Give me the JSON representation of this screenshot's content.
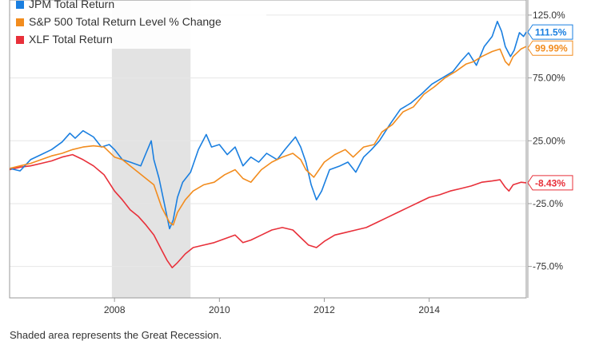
{
  "chart_data": {
    "type": "line",
    "title": "",
    "xlabel": "",
    "ylabel": "",
    "x_domain": [
      2006.0,
      2015.85
    ],
    "ylim": [
      -100,
      137
    ],
    "y_ticks": [
      {
        "value": 125,
        "label": "125.0%"
      },
      {
        "value": 75,
        "label": "75.00%"
      },
      {
        "value": 25,
        "label": "25.00%"
      },
      {
        "value": -25,
        "label": "-25.0%"
      },
      {
        "value": -75,
        "label": "-75.0%"
      }
    ],
    "x_ticks": [
      {
        "value": 2008,
        "label": "2008"
      },
      {
        "value": 2010,
        "label": "2010"
      },
      {
        "value": 2012,
        "label": "2012"
      },
      {
        "value": 2014,
        "label": "2014"
      }
    ],
    "shaded_region": {
      "x_start": 2007.95,
      "x_end": 2009.45
    },
    "grid": true,
    "legend_position": "top-left",
    "series": [
      {
        "name": "JPM Total Return",
        "color": "#1a7fe0",
        "end_label": "111.5%",
        "end_value": 111.5,
        "points": [
          [
            2006.0,
            3
          ],
          [
            2006.2,
            1
          ],
          [
            2006.4,
            10
          ],
          [
            2006.6,
            14
          ],
          [
            2006.8,
            18
          ],
          [
            2007.0,
            24
          ],
          [
            2007.15,
            31
          ],
          [
            2007.25,
            27
          ],
          [
            2007.4,
            33
          ],
          [
            2007.6,
            28
          ],
          [
            2007.75,
            20
          ],
          [
            2007.9,
            22
          ],
          [
            2008.0,
            18
          ],
          [
            2008.15,
            10
          ],
          [
            2008.3,
            8
          ],
          [
            2008.5,
            5
          ],
          [
            2008.6,
            15
          ],
          [
            2008.7,
            25
          ],
          [
            2008.75,
            10
          ],
          [
            2008.85,
            -5
          ],
          [
            2008.95,
            -25
          ],
          [
            2009.05,
            -45
          ],
          [
            2009.12,
            -38
          ],
          [
            2009.2,
            -20
          ],
          [
            2009.3,
            -8
          ],
          [
            2009.45,
            0
          ],
          [
            2009.6,
            18
          ],
          [
            2009.75,
            30
          ],
          [
            2009.85,
            20
          ],
          [
            2010.0,
            22
          ],
          [
            2010.15,
            14
          ],
          [
            2010.3,
            20
          ],
          [
            2010.45,
            5
          ],
          [
            2010.6,
            12
          ],
          [
            2010.75,
            8
          ],
          [
            2010.9,
            15
          ],
          [
            2011.1,
            10
          ],
          [
            2011.25,
            18
          ],
          [
            2011.45,
            28
          ],
          [
            2011.55,
            20
          ],
          [
            2011.65,
            8
          ],
          [
            2011.75,
            -10
          ],
          [
            2011.85,
            -22
          ],
          [
            2011.95,
            -15
          ],
          [
            2012.1,
            2
          ],
          [
            2012.3,
            5
          ],
          [
            2012.45,
            8
          ],
          [
            2012.6,
            0
          ],
          [
            2012.75,
            12
          ],
          [
            2012.9,
            18
          ],
          [
            2013.05,
            25
          ],
          [
            2013.25,
            38
          ],
          [
            2013.45,
            50
          ],
          [
            2013.65,
            55
          ],
          [
            2013.85,
            62
          ],
          [
            2014.05,
            70
          ],
          [
            2014.25,
            75
          ],
          [
            2014.45,
            80
          ],
          [
            2014.6,
            88
          ],
          [
            2014.75,
            95
          ],
          [
            2014.9,
            85
          ],
          [
            2015.05,
            100
          ],
          [
            2015.2,
            108
          ],
          [
            2015.3,
            120
          ],
          [
            2015.38,
            112
          ],
          [
            2015.45,
            100
          ],
          [
            2015.55,
            92
          ],
          [
            2015.62,
            97
          ],
          [
            2015.72,
            111
          ],
          [
            2015.8,
            108
          ],
          [
            2015.85,
            111.5
          ]
        ]
      },
      {
        "name": "S&P 500 Total Return Level % Change",
        "color": "#f28c1e",
        "end_label": "99.99%",
        "end_value": 99.99,
        "points": [
          [
            2006.0,
            3
          ],
          [
            2006.2,
            5
          ],
          [
            2006.4,
            7
          ],
          [
            2006.6,
            10
          ],
          [
            2006.8,
            13
          ],
          [
            2007.0,
            15
          ],
          [
            2007.2,
            18
          ],
          [
            2007.4,
            20
          ],
          [
            2007.6,
            21
          ],
          [
            2007.8,
            20
          ],
          [
            2008.0,
            12
          ],
          [
            2008.15,
            10
          ],
          [
            2008.3,
            5
          ],
          [
            2008.45,
            0
          ],
          [
            2008.6,
            -5
          ],
          [
            2008.75,
            -10
          ],
          [
            2008.9,
            -28
          ],
          [
            2009.05,
            -40
          ],
          [
            2009.12,
            -42
          ],
          [
            2009.2,
            -32
          ],
          [
            2009.35,
            -22
          ],
          [
            2009.5,
            -15
          ],
          [
            2009.7,
            -10
          ],
          [
            2009.9,
            -8
          ],
          [
            2010.1,
            -2
          ],
          [
            2010.3,
            2
          ],
          [
            2010.45,
            -5
          ],
          [
            2010.6,
            -8
          ],
          [
            2010.8,
            2
          ],
          [
            2011.0,
            8
          ],
          [
            2011.2,
            12
          ],
          [
            2011.4,
            15
          ],
          [
            2011.55,
            10
          ],
          [
            2011.65,
            2
          ],
          [
            2011.8,
            -4
          ],
          [
            2012.0,
            8
          ],
          [
            2012.2,
            14
          ],
          [
            2012.4,
            18
          ],
          [
            2012.55,
            12
          ],
          [
            2012.75,
            20
          ],
          [
            2012.95,
            22
          ],
          [
            2013.1,
            32
          ],
          [
            2013.3,
            38
          ],
          [
            2013.5,
            48
          ],
          [
            2013.7,
            52
          ],
          [
            2013.9,
            62
          ],
          [
            2014.1,
            68
          ],
          [
            2014.3,
            75
          ],
          [
            2014.5,
            80
          ],
          [
            2014.7,
            86
          ],
          [
            2014.85,
            88
          ],
          [
            2015.0,
            92
          ],
          [
            2015.2,
            96
          ],
          [
            2015.35,
            98
          ],
          [
            2015.45,
            88
          ],
          [
            2015.52,
            85
          ],
          [
            2015.6,
            92
          ],
          [
            2015.75,
            98
          ],
          [
            2015.85,
            99.99
          ]
        ]
      },
      {
        "name": "XLF Total Return",
        "color": "#e8303a",
        "end_label": "-8.43%",
        "end_value": -8.43,
        "points": [
          [
            2006.0,
            2
          ],
          [
            2006.2,
            4
          ],
          [
            2006.4,
            5
          ],
          [
            2006.6,
            7
          ],
          [
            2006.8,
            9
          ],
          [
            2007.0,
            12
          ],
          [
            2007.2,
            14
          ],
          [
            2007.4,
            10
          ],
          [
            2007.6,
            5
          ],
          [
            2007.8,
            -2
          ],
          [
            2008.0,
            -15
          ],
          [
            2008.15,
            -22
          ],
          [
            2008.3,
            -30
          ],
          [
            2008.45,
            -35
          ],
          [
            2008.6,
            -42
          ],
          [
            2008.75,
            -50
          ],
          [
            2008.9,
            -62
          ],
          [
            2009.0,
            -70
          ],
          [
            2009.1,
            -76
          ],
          [
            2009.2,
            -72
          ],
          [
            2009.35,
            -65
          ],
          [
            2009.5,
            -60
          ],
          [
            2009.7,
            -58
          ],
          [
            2009.9,
            -56
          ],
          [
            2010.1,
            -53
          ],
          [
            2010.3,
            -50
          ],
          [
            2010.45,
            -56
          ],
          [
            2010.6,
            -54
          ],
          [
            2010.8,
            -50
          ],
          [
            2011.0,
            -46
          ],
          [
            2011.2,
            -44
          ],
          [
            2011.4,
            -46
          ],
          [
            2011.55,
            -52
          ],
          [
            2011.7,
            -58
          ],
          [
            2011.85,
            -60
          ],
          [
            2012.0,
            -55
          ],
          [
            2012.2,
            -50
          ],
          [
            2012.4,
            -48
          ],
          [
            2012.6,
            -46
          ],
          [
            2012.8,
            -44
          ],
          [
            2013.0,
            -40
          ],
          [
            2013.2,
            -36
          ],
          [
            2013.4,
            -32
          ],
          [
            2013.6,
            -28
          ],
          [
            2013.8,
            -24
          ],
          [
            2014.0,
            -20
          ],
          [
            2014.2,
            -18
          ],
          [
            2014.4,
            -15
          ],
          [
            2014.6,
            -13
          ],
          [
            2014.8,
            -11
          ],
          [
            2015.0,
            -8
          ],
          [
            2015.2,
            -7
          ],
          [
            2015.35,
            -6
          ],
          [
            2015.45,
            -12
          ],
          [
            2015.52,
            -15
          ],
          [
            2015.6,
            -10
          ],
          [
            2015.75,
            -8
          ],
          [
            2015.85,
            -8.43
          ]
        ]
      }
    ]
  },
  "footnote": "Shaded area represents the Great Recession."
}
